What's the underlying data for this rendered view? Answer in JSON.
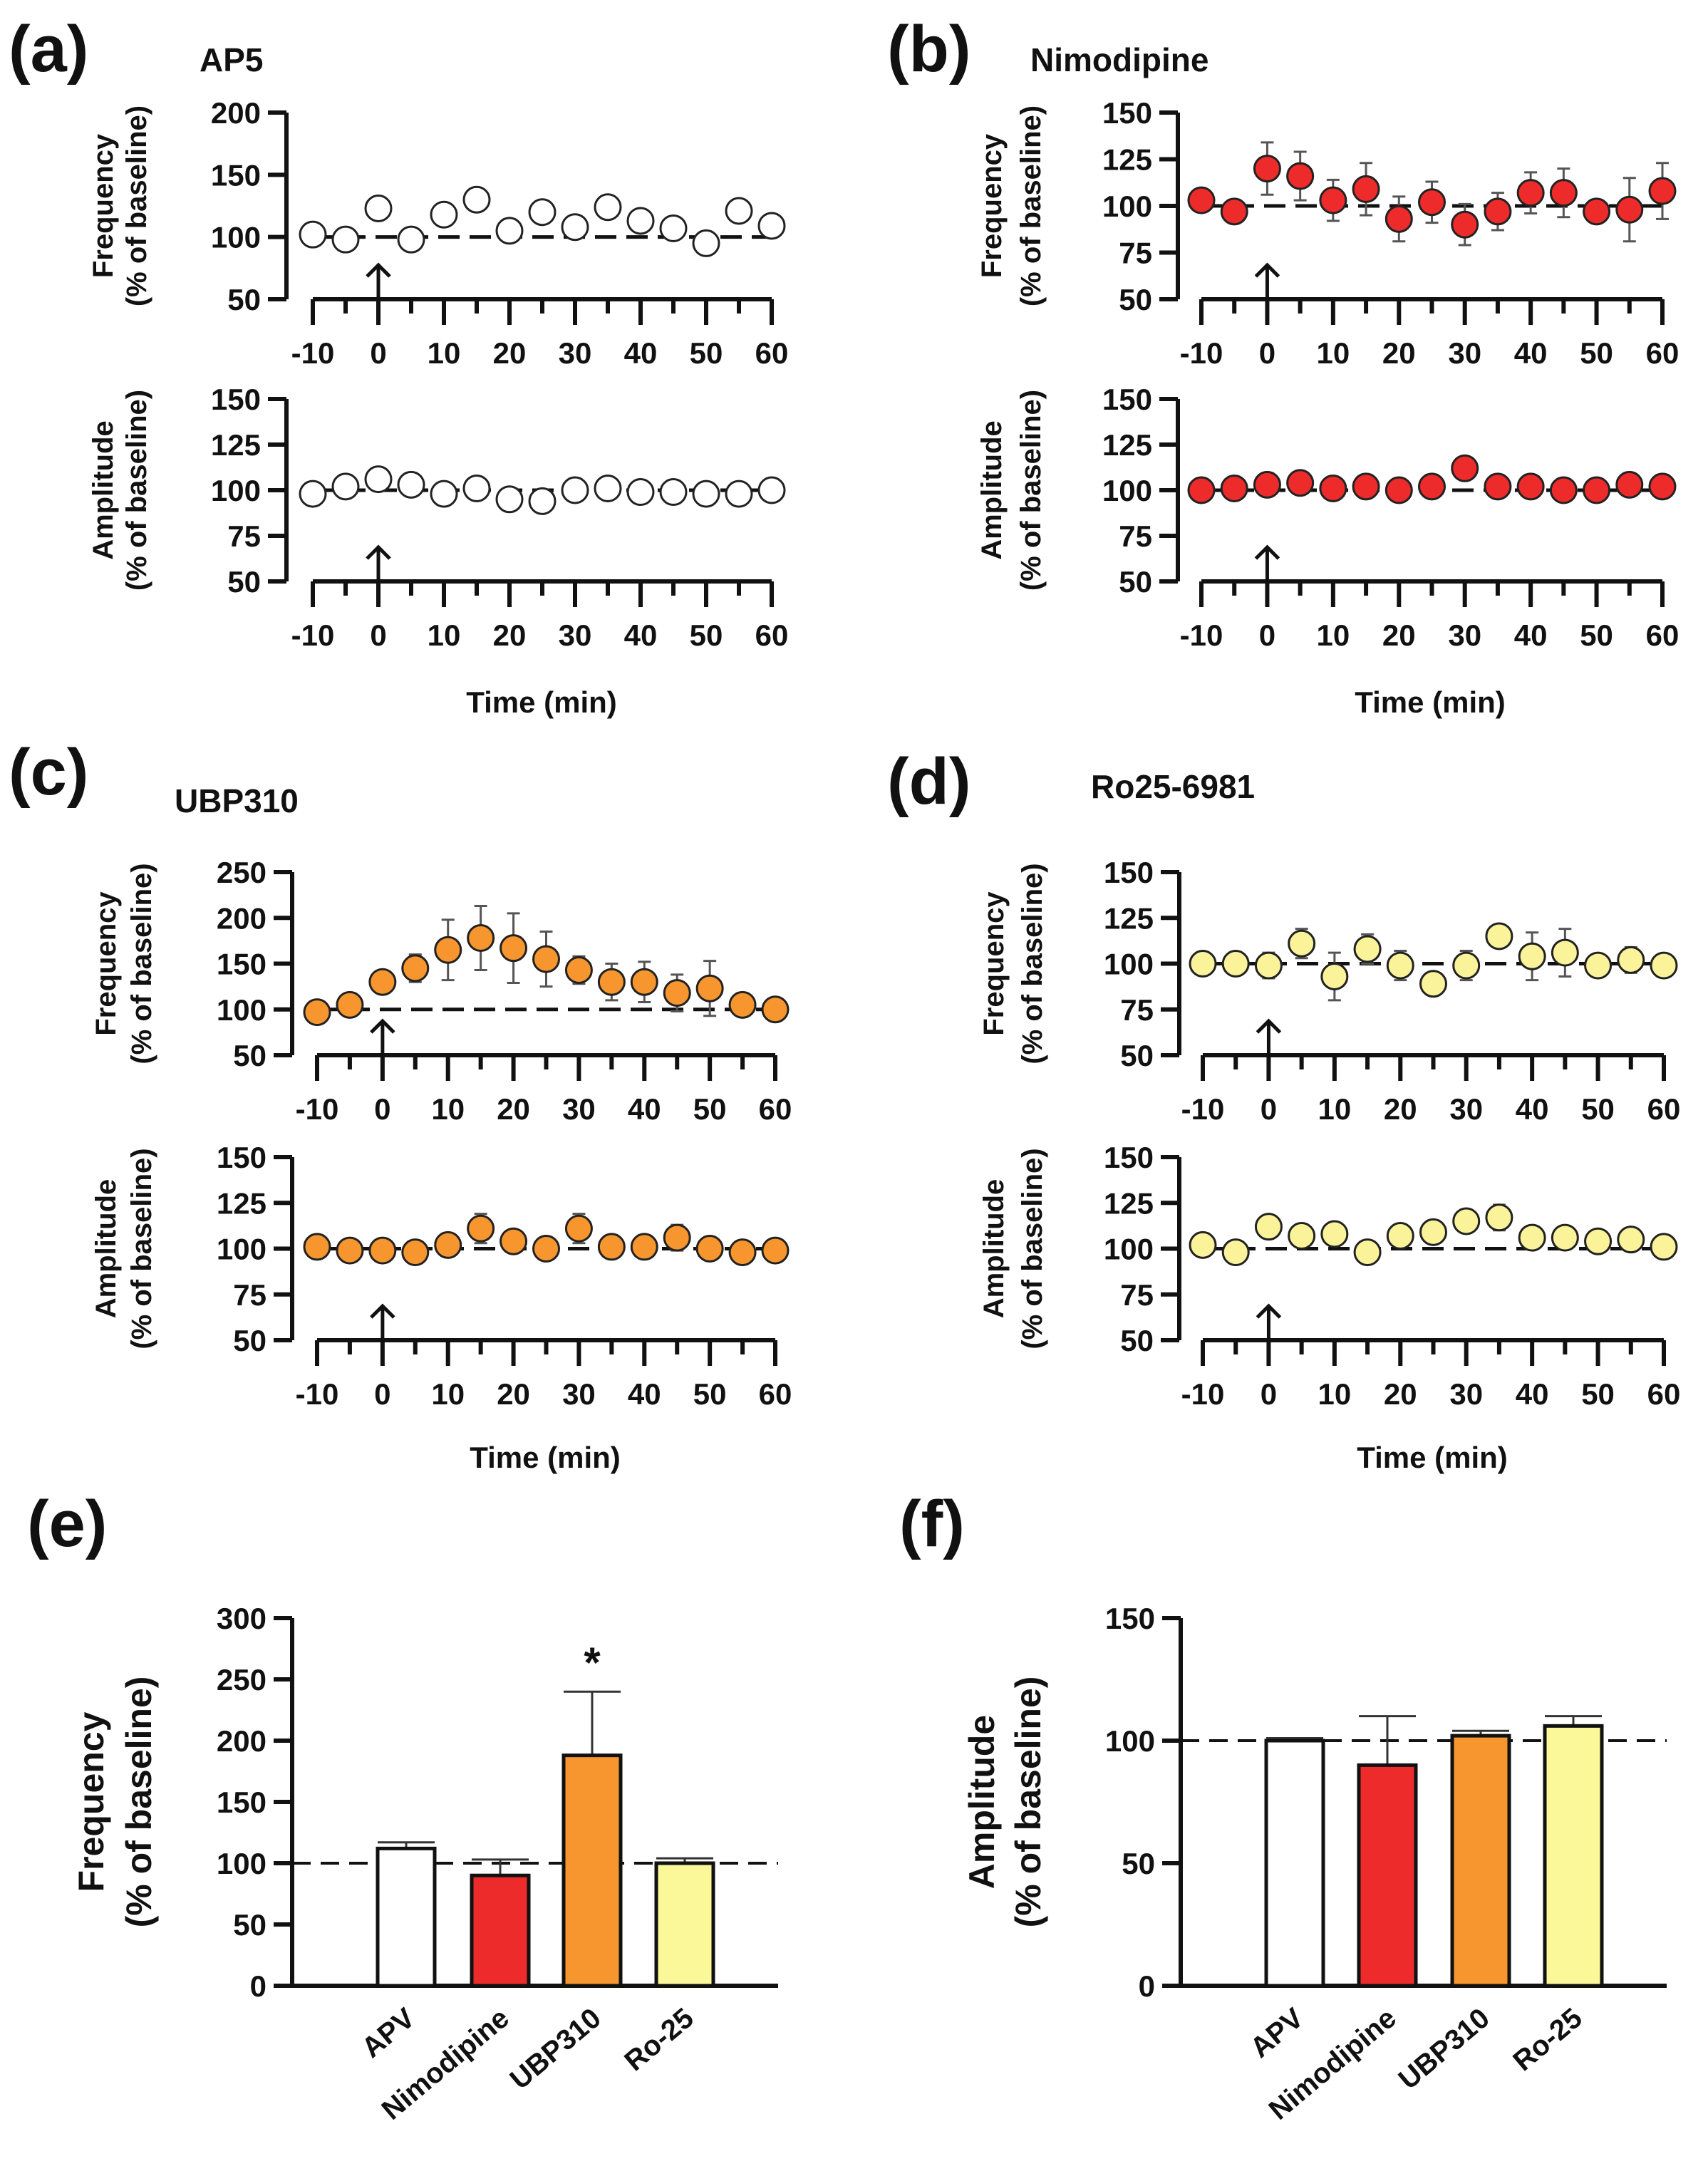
{
  "panels": {
    "a": {
      "letter": "(a)",
      "title": "AP5"
    },
    "b": {
      "letter": "(b)",
      "title": "Nimodipine"
    },
    "c": {
      "letter": "(c)",
      "title": "UBP310"
    },
    "d": {
      "letter": "(d)",
      "title": "Ro25-6981"
    },
    "e": {
      "letter": "(e)"
    },
    "f": {
      "letter": "(f)"
    }
  },
  "chart_data": [
    {
      "id": "a-freq",
      "panel": "a",
      "type": "scatter",
      "ylabel": [
        "Frequency",
        "(% of baseline)"
      ],
      "xlabel": "",
      "color": "#ffffff",
      "x": [
        -10,
        -5,
        0,
        5,
        10,
        15,
        20,
        25,
        30,
        35,
        40,
        45,
        50,
        55,
        60
      ],
      "y": [
        102,
        98,
        123,
        98,
        118,
        130,
        105,
        120,
        108,
        124,
        113,
        107,
        95,
        121,
        109
      ],
      "err": [
        0,
        0,
        0,
        0,
        4,
        6,
        0,
        0,
        0,
        4,
        5,
        0,
        0,
        6,
        4
      ],
      "ylim": [
        50,
        200
      ],
      "yticks": [
        50,
        100,
        150,
        200
      ],
      "xticks": [
        -10,
        0,
        10,
        20,
        30,
        40,
        50,
        60
      ],
      "reference_line": 100,
      "arrow_at": 0
    },
    {
      "id": "a-amp",
      "panel": "a",
      "type": "scatter",
      "ylabel": [
        "Amplitude",
        "(% of baseline)"
      ],
      "xlabel": "Time (min)",
      "color": "#ffffff",
      "x": [
        -10,
        -5,
        0,
        5,
        10,
        15,
        20,
        25,
        30,
        35,
        40,
        45,
        50,
        55,
        60
      ],
      "y": [
        98,
        102,
        106,
        103,
        98,
        101,
        95,
        94,
        100,
        101,
        99,
        99,
        98,
        98,
        100
      ],
      "err": [
        0,
        0,
        0,
        0,
        0,
        0,
        0,
        0,
        0,
        0,
        0,
        0,
        0,
        0,
        0
      ],
      "ylim": [
        50,
        150
      ],
      "yticks": [
        50,
        75,
        100,
        125,
        150
      ],
      "xticks": [
        -10,
        0,
        10,
        20,
        30,
        40,
        50,
        60
      ],
      "reference_line": 100,
      "arrow_at": 0
    },
    {
      "id": "b-freq",
      "panel": "b",
      "type": "scatter",
      "ylabel": [
        "Frequency",
        "(% of baseline)"
      ],
      "xlabel": "",
      "color": "#ee2b2b",
      "x": [
        -10,
        -5,
        0,
        5,
        10,
        15,
        20,
        25,
        30,
        35,
        40,
        45,
        50,
        55,
        60
      ],
      "y": [
        103,
        97,
        120,
        116,
        103,
        109,
        93,
        102,
        90,
        97,
        107,
        107,
        97,
        98,
        108
      ],
      "err": [
        3,
        2,
        14,
        13,
        11,
        14,
        12,
        11,
        11,
        10,
        11,
        13,
        3,
        17,
        15
      ],
      "ylim": [
        50,
        150
      ],
      "yticks": [
        50,
        75,
        100,
        125,
        150
      ],
      "xticks": [
        -10,
        0,
        10,
        20,
        30,
        40,
        50,
        60
      ],
      "reference_line": 100,
      "arrow_at": 0
    },
    {
      "id": "b-amp",
      "panel": "b",
      "type": "scatter",
      "ylabel": [
        "Amplitude",
        "(% of baseline)"
      ],
      "xlabel": "Time (min)",
      "color": "#ee2b2b",
      "x": [
        -10,
        -5,
        0,
        5,
        10,
        15,
        20,
        25,
        30,
        35,
        40,
        45,
        50,
        55,
        60
      ],
      "y": [
        100,
        101,
        103,
        104,
        101,
        102,
        100,
        102,
        112,
        102,
        102,
        100,
        100,
        103,
        102
      ],
      "err": [
        0,
        0,
        0,
        0,
        0,
        0,
        0,
        0,
        0,
        0,
        0,
        0,
        0,
        0,
        0
      ],
      "ylim": [
        50,
        150
      ],
      "yticks": [
        50,
        75,
        100,
        125,
        150
      ],
      "xticks": [
        -10,
        0,
        10,
        20,
        30,
        40,
        50,
        60
      ],
      "reference_line": 100,
      "arrow_at": 0
    },
    {
      "id": "c-freq",
      "panel": "c",
      "type": "scatter",
      "ylabel": [
        "Frequency",
        "(% of baseline)"
      ],
      "xlabel": "",
      "color": "#f7962e",
      "x": [
        -10,
        -5,
        0,
        5,
        10,
        15,
        20,
        25,
        30,
        35,
        40,
        45,
        50,
        55,
        60
      ],
      "y": [
        97,
        105,
        130,
        145,
        165,
        178,
        167,
        155,
        143,
        130,
        130,
        118,
        123,
        105,
        100
      ],
      "err": [
        0,
        0,
        0,
        15,
        33,
        35,
        38,
        30,
        15,
        20,
        22,
        20,
        30,
        10,
        0
      ],
      "ylim": [
        50,
        250
      ],
      "yticks": [
        50,
        100,
        150,
        200,
        250
      ],
      "xticks": [
        -10,
        0,
        10,
        20,
        30,
        40,
        50,
        60
      ],
      "reference_line": 100,
      "arrow_at": 0
    },
    {
      "id": "c-amp",
      "panel": "c",
      "type": "scatter",
      "ylabel": [
        "Amplitude",
        "(% of baseline)"
      ],
      "xlabel": "Time (min)",
      "color": "#f7962e",
      "x": [
        -10,
        -5,
        0,
        5,
        10,
        15,
        20,
        25,
        30,
        35,
        40,
        45,
        50,
        55,
        60
      ],
      "y": [
        101,
        99,
        99,
        98,
        102,
        111,
        104,
        100,
        111,
        101,
        101,
        106,
        100,
        98,
        99
      ],
      "err": [
        0,
        0,
        0,
        0,
        0,
        8,
        5,
        0,
        8,
        0,
        0,
        7,
        0,
        0,
        0
      ],
      "ylim": [
        50,
        150
      ],
      "yticks": [
        50,
        75,
        100,
        125,
        150
      ],
      "xticks": [
        -10,
        0,
        10,
        20,
        30,
        40,
        50,
        60
      ],
      "reference_line": 100,
      "arrow_at": 0
    },
    {
      "id": "d-freq",
      "panel": "d",
      "type": "scatter",
      "ylabel": [
        "Frequency",
        "(% of baseline)"
      ],
      "xlabel": "",
      "color": "#fbf39a",
      "x": [
        -10,
        -5,
        0,
        5,
        10,
        15,
        20,
        25,
        30,
        35,
        40,
        45,
        50,
        55,
        60
      ],
      "y": [
        100,
        100,
        99,
        111,
        93,
        108,
        99,
        89,
        99,
        115,
        104,
        106,
        99,
        102,
        99
      ],
      "err": [
        0,
        0,
        7,
        8,
        13,
        8,
        8,
        0,
        8,
        6,
        13,
        13,
        5,
        7,
        0
      ],
      "ylim": [
        50,
        150
      ],
      "yticks": [
        50,
        75,
        100,
        125,
        150
      ],
      "xticks": [
        -10,
        0,
        10,
        20,
        30,
        40,
        50,
        60
      ],
      "reference_line": 100,
      "arrow_at": 0
    },
    {
      "id": "d-amp",
      "panel": "d",
      "type": "scatter",
      "ylabel": [
        "Amplitude",
        "(% of baseline)"
      ],
      "xlabel": "Time (min)",
      "color": "#fbf39a",
      "x": [
        -10,
        -5,
        0,
        5,
        10,
        15,
        20,
        25,
        30,
        35,
        40,
        45,
        50,
        55,
        60
      ],
      "y": [
        102,
        98,
        112,
        107,
        108,
        98,
        107,
        109,
        115,
        117,
        106,
        106,
        104,
        105,
        101
      ],
      "err": [
        0,
        0,
        0,
        5,
        0,
        0,
        0,
        0,
        6,
        7,
        0,
        0,
        0,
        0,
        0
      ],
      "ylim": [
        50,
        150
      ],
      "yticks": [
        50,
        75,
        100,
        125,
        150
      ],
      "xticks": [
        -10,
        0,
        10,
        20,
        30,
        40,
        50,
        60
      ],
      "reference_line": 100,
      "arrow_at": 0
    },
    {
      "id": "e",
      "panel": "e",
      "type": "bar",
      "ylabel": [
        "Frequency",
        "(% of baseline)"
      ],
      "categories": [
        "APV",
        "Nimodipine",
        "UBP310",
        "Ro-25"
      ],
      "values": [
        112,
        90,
        188,
        100
      ],
      "errors": [
        5,
        13,
        52,
        4
      ],
      "colors": [
        "#ffffff",
        "#ee2b2b",
        "#f7962e",
        "#fbf89a"
      ],
      "annotations": [
        "",
        "",
        "*",
        ""
      ],
      "ylim": [
        0,
        300
      ],
      "yticks": [
        0,
        50,
        100,
        150,
        200,
        250,
        300
      ],
      "reference_line": 100
    },
    {
      "id": "f",
      "panel": "f",
      "type": "bar",
      "ylabel": [
        "Amplitude",
        "(% of baseline)"
      ],
      "categories": [
        "APV",
        "Nimodipine",
        "UBP310",
        "Ro-25"
      ],
      "values": [
        100,
        90,
        102,
        106
      ],
      "errors": [
        1,
        20,
        2,
        4
      ],
      "colors": [
        "#ffffff",
        "#ee2b2b",
        "#f7962e",
        "#fbf89a"
      ],
      "annotations": [
        "",
        "",
        "",
        ""
      ],
      "ylim": [
        0,
        150
      ],
      "yticks": [
        0,
        50,
        100,
        150
      ],
      "reference_line": 100
    }
  ]
}
